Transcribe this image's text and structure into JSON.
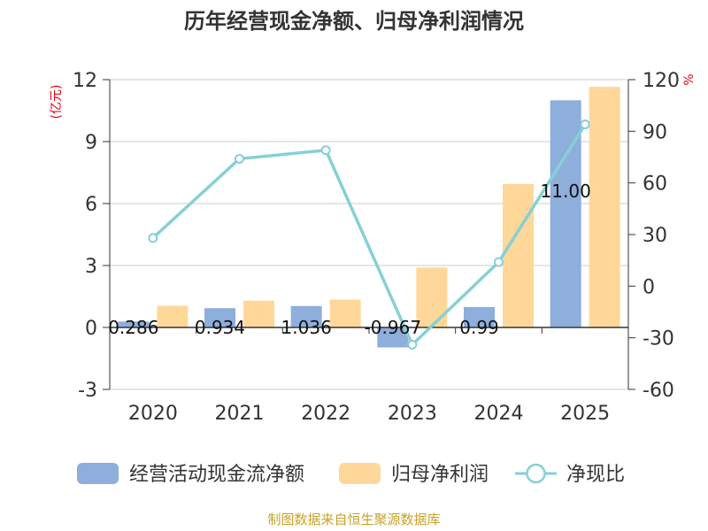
{
  "chart_data": {
    "type": "bar",
    "title": "历年经营现金净额、归母净利润情况",
    "categories": [
      "2020",
      "2021",
      "2022",
      "2023",
      "2024",
      "2025"
    ],
    "series": [
      {
        "name": "经营活动现金流净额",
        "axis": "left",
        "kind": "bar",
        "color": "#8eaedb",
        "values": [
          0.286,
          0.934,
          1.036,
          -0.967,
          0.99,
          11.0
        ],
        "labels": [
          "0.286",
          "0.934",
          "1.036",
          "-0.967",
          "0.99",
          "11.00"
        ]
      },
      {
        "name": "归母净利润",
        "axis": "left",
        "kind": "bar",
        "color": "#ffd899",
        "values": [
          1.05,
          1.3,
          1.35,
          2.9,
          6.95,
          11.65
        ]
      },
      {
        "name": "净现比",
        "axis": "right",
        "kind": "line",
        "color": "#86d0d6",
        "values": [
          28,
          74,
          79,
          -34,
          14,
          94
        ]
      }
    ],
    "y_left": {
      "unit": "(亿元)",
      "min": -3,
      "max": 12,
      "ticks": [
        "12",
        "9",
        "6",
        "3",
        "0",
        "-3"
      ]
    },
    "y_right": {
      "unit": "%",
      "min": -60,
      "max": 120,
      "ticks": [
        "120",
        "90",
        "60",
        "30",
        "0",
        "-30",
        "-60"
      ]
    },
    "legend_position": "bottom",
    "grid": true
  },
  "source": "制图数据来自恒生聚源数据库"
}
